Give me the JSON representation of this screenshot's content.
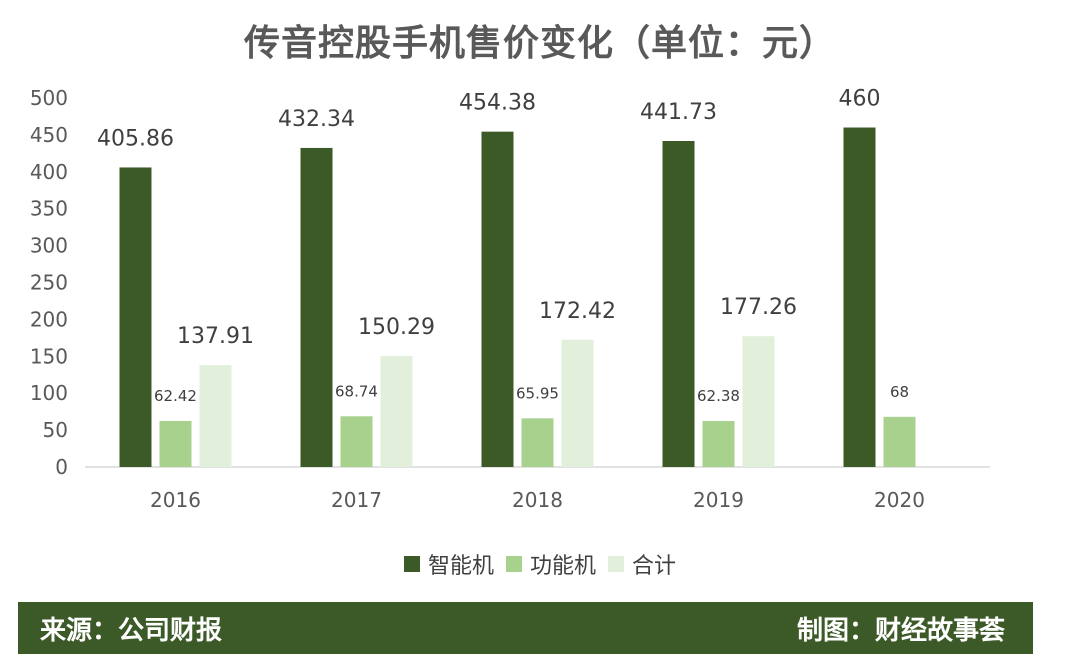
{
  "title": "传音控股手机售价变化（单位：元）",
  "chart_data": {
    "type": "bar",
    "categories": [
      "2016",
      "2017",
      "2018",
      "2019",
      "2020"
    ],
    "series": [
      {
        "name": "智能机",
        "values": [
          405.86,
          432.34,
          454.38,
          441.73,
          460
        ],
        "labels": [
          "405.86",
          "432.34",
          "454.38",
          "441.73",
          "460"
        ],
        "color": "#3c5a28"
      },
      {
        "name": "功能机",
        "values": [
          62.42,
          68.74,
          65.95,
          62.38,
          68
        ],
        "labels": [
          "62.42",
          "68.74",
          "65.95",
          "62.38",
          "68"
        ],
        "color": "#a9d18e"
      },
      {
        "name": "合计",
        "values": [
          137.91,
          150.29,
          172.42,
          177.26,
          null
        ],
        "labels": [
          "137.91",
          "150.29",
          "172.42",
          "177.26",
          ""
        ],
        "color": "#e2efda"
      }
    ],
    "ylim": [
      0,
      500
    ],
    "yticks": [
      0,
      50,
      100,
      150,
      200,
      250,
      300,
      350,
      400,
      450,
      500
    ],
    "grid": false,
    "legend_position": "bottom"
  },
  "footer": {
    "source": "来源：公司财报",
    "credit": "制图：财经故事荟"
  }
}
